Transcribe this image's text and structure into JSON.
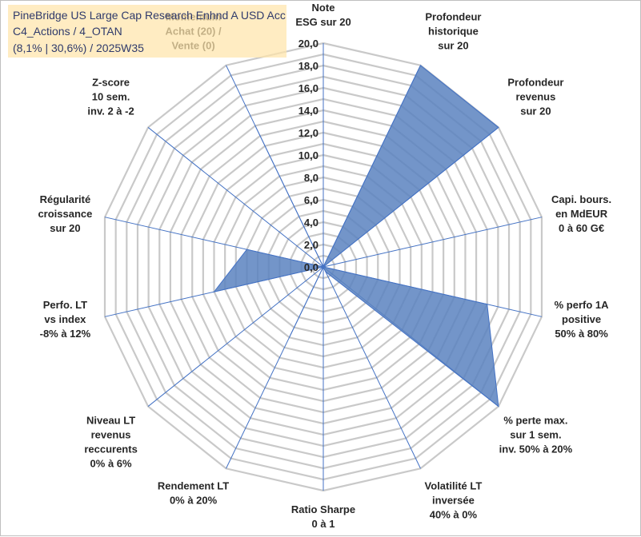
{
  "title": {
    "line1": "PineBridge US Large Cap Research Enhnd A USD Acc",
    "line2": "C4_Actions / 4_OTAN",
    "line3": "(8,1% | 30,6%) / 2025W35"
  },
  "colors": {
    "fill": "#5b83bf",
    "stroke": "#4472c4",
    "grid": "#c9c9c9",
    "spokes": "#4472c4",
    "text": "#262626"
  },
  "chart_data": {
    "type": "radar",
    "rmin": 0,
    "rmax": 20,
    "tick_step": 2,
    "grid_step": 1,
    "tick_labels": [
      "0,0",
      "2,0",
      "4,0",
      "6,0",
      "8,0",
      "10,0",
      "12,0",
      "14,0",
      "16,0",
      "18,0",
      "20,0"
    ],
    "categories": [
      [
        "Note",
        "ESG sur 20"
      ],
      [
        "Profondeur",
        "historique",
        "sur 20"
      ],
      [
        "Profondeur",
        "revenus",
        "sur 20"
      ],
      [
        "Capi. bours.",
        "en MdEUR",
        "0 à 60 G€"
      ],
      [
        "% perfo 1A",
        "positive",
        "50% à 80%"
      ],
      [
        "% perte max.",
        "sur 1 sem.",
        "inv. 50% à 20%"
      ],
      [
        "Volatilité LT",
        "inversée",
        "40% à 0%"
      ],
      [
        "Ratio Sharpe",
        "0 à 1"
      ],
      [
        "Rendement LT",
        "0% à 20%"
      ],
      [
        "Niveau LT",
        "revenus",
        "reccurents",
        "0% à 6%"
      ],
      [
        "Perfo. LT",
        "vs index",
        "-8% à 12%"
      ],
      [
        "Régularité",
        "croissance",
        "sur 20"
      ],
      [
        "Z-score",
        "10 sem.",
        "inv. 2 à -2"
      ],
      [
        "Momentum",
        "Achat (20) /",
        "Vente (0)"
      ]
    ],
    "values": [
      0,
      20,
      20,
      0,
      15,
      20,
      0.5,
      0,
      7,
      0,
      10,
      7,
      0,
      14
    ]
  }
}
